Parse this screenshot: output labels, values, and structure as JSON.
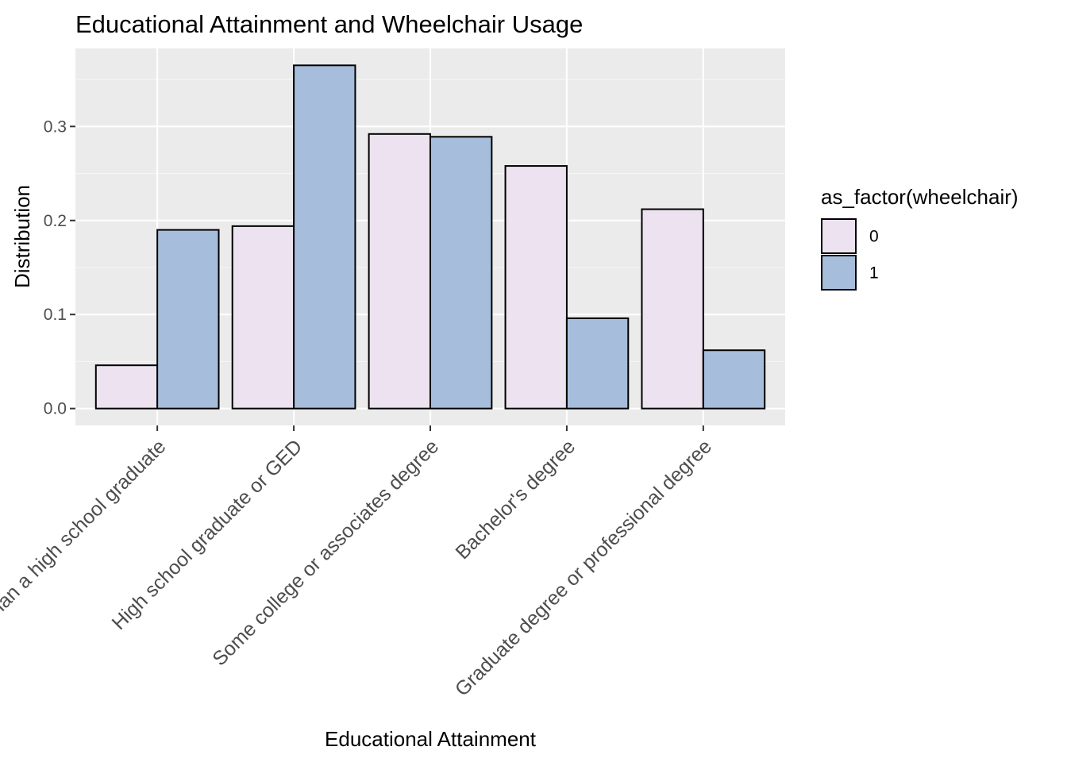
{
  "colors": {
    "panel_background": "#ebebeb",
    "grid_major": "#ffffff",
    "grid_minor": "#f5f5f5",
    "bar_outline": "#000000",
    "series_0": "#ece2f0",
    "series_1": "#a6bddb",
    "tick_text": "#4d4d4d"
  },
  "chart_data": {
    "type": "bar",
    "title": "Educational Attainment and Wheelchair Usage",
    "xlabel": "Educational Attainment",
    "ylabel": "Distribution",
    "categories": [
      "Less than a high school graduate",
      "High school graduate or GED",
      "Some college or associates degree",
      "Bachelor's degree",
      "Graduate degree or professional degree"
    ],
    "series": [
      {
        "name": "0",
        "values": [
          0.046,
          0.194,
          0.292,
          0.258,
          0.212
        ]
      },
      {
        "name": "1",
        "values": [
          0.19,
          0.365,
          0.289,
          0.096,
          0.062
        ]
      }
    ],
    "ylim": [
      -0.018,
      0.383
    ],
    "yticks": [
      0.0,
      0.1,
      0.2,
      0.3
    ],
    "ytick_labels": [
      "0.0",
      "0.1",
      "0.2",
      "0.3"
    ],
    "legend": {
      "title": "as_factor(wheelchair)",
      "position": "right"
    },
    "grid": true,
    "position": "dodge"
  }
}
